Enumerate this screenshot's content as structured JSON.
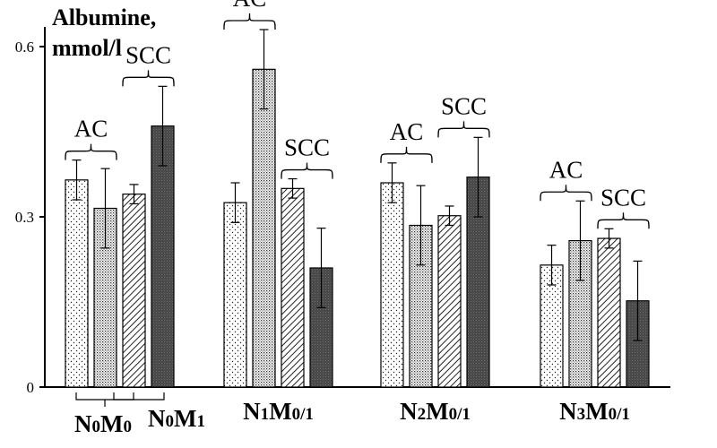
{
  "chart_data": {
    "type": "bar",
    "ylabel": [
      "Albumine,",
      "mmol/l"
    ],
    "ylim": [
      0,
      0.6
    ],
    "yticks": [
      {
        "value": 0,
        "label": "0"
      },
      {
        "value": 0.3,
        "label": "0.3"
      },
      {
        "value": 0.6,
        "label": "0.6"
      }
    ],
    "groups": [
      {
        "label_main_1": "N",
        "label_sub_1": "0",
        "label_main_2": "M",
        "label_sub_2": "0",
        "second_label": {
          "main_1": "N",
          "sub_1": "0",
          "main_2": "M",
          "sub_2": "1"
        },
        "bars": [
          {
            "value": 0.365,
            "err": 0.035,
            "pattern": "dots"
          },
          {
            "value": 0.315,
            "err": 0.07,
            "pattern": "dots-dense"
          },
          {
            "value": 0.34,
            "err": 0.017,
            "pattern": "hatch"
          },
          {
            "value": 0.46,
            "err": 0.07,
            "pattern": "dark"
          }
        ]
      },
      {
        "label_main_1": "N",
        "label_sub_1": "1",
        "label_main_2": "M",
        "label_sub_2": "0/1",
        "bars": [
          {
            "value": 0.325,
            "err": 0.035,
            "pattern": "dots"
          },
          {
            "value": 0.56,
            "err": 0.07,
            "pattern": "dots-dense"
          },
          {
            "value": 0.35,
            "err": 0.017,
            "pattern": "hatch"
          },
          {
            "value": 0.21,
            "err": 0.07,
            "pattern": "dark"
          }
        ]
      },
      {
        "label_main_1": "N",
        "label_sub_1": "2",
        "label_main_2": "M",
        "label_sub_2": "0/1",
        "bars": [
          {
            "value": 0.36,
            "err": 0.035,
            "pattern": "dots"
          },
          {
            "value": 0.285,
            "err": 0.07,
            "pattern": "dots-dense"
          },
          {
            "value": 0.302,
            "err": 0.017,
            "pattern": "hatch"
          },
          {
            "value": 0.37,
            "err": 0.07,
            "pattern": "dark"
          }
        ]
      },
      {
        "label_main_1": "N",
        "label_sub_1": "3",
        "label_main_2": "M",
        "label_sub_2": "0/1",
        "bars": [
          {
            "value": 0.215,
            "err": 0.035,
            "pattern": "dots"
          },
          {
            "value": 0.258,
            "err": 0.07,
            "pattern": "dots-dense"
          },
          {
            "value": 0.262,
            "err": 0.017,
            "pattern": "hatch"
          },
          {
            "value": 0.152,
            "err": 0.07,
            "pattern": "dark"
          }
        ]
      }
    ],
    "annotations": {
      "ac": "AC",
      "scc": "SCC"
    },
    "colors": {
      "dark_fill": "#555555",
      "axis": "#000000"
    }
  }
}
